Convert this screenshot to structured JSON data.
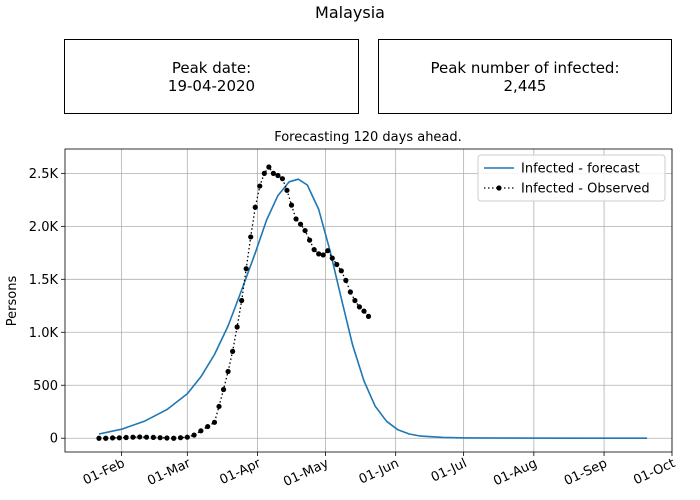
{
  "figure_title": "Malaysia",
  "boxes": {
    "peak_date_label": "Peak date:",
    "peak_date_value": "19-04-2020",
    "peak_infected_label": "Peak number of infected:",
    "peak_infected_value": "2,445"
  },
  "chart_data": {
    "type": "line",
    "title": "Forecasting 120 days ahead.",
    "xlabel": "",
    "ylabel": "Persons",
    "grid": true,
    "legend_position": "top-right",
    "xlim": [
      "2020-01-07",
      "2020-10-01"
    ],
    "ylim": [
      -130,
      2730
    ],
    "x_ticks": [
      {
        "date": "2020-02-01",
        "label": "01-Feb"
      },
      {
        "date": "2020-03-01",
        "label": "01-Mar"
      },
      {
        "date": "2020-04-01",
        "label": "01-Apr"
      },
      {
        "date": "2020-05-01",
        "label": "01-May"
      },
      {
        "date": "2020-06-01",
        "label": "01-Jun"
      },
      {
        "date": "2020-07-01",
        "label": "01-Jul"
      },
      {
        "date": "2020-08-01",
        "label": "01-Aug"
      },
      {
        "date": "2020-09-01",
        "label": "01-Sep"
      },
      {
        "date": "2020-10-01",
        "label": "01-Oct"
      }
    ],
    "y_ticks": [
      {
        "value": 0,
        "label": "0"
      },
      {
        "value": 500,
        "label": "500"
      },
      {
        "value": 1000,
        "label": "1.0K"
      },
      {
        "value": 1500,
        "label": "1.5K"
      },
      {
        "value": 2000,
        "label": "2.0K"
      },
      {
        "value": 2500,
        "label": "2.5K"
      }
    ],
    "series": [
      {
        "name": "Infected - forecast",
        "color": "#1f77b4",
        "style": "solid",
        "x": [
          "2020-01-22",
          "2020-02-01",
          "2020-02-11",
          "2020-02-21",
          "2020-03-01",
          "2020-03-07",
          "2020-03-13",
          "2020-03-19",
          "2020-03-25",
          "2020-03-31",
          "2020-04-05",
          "2020-04-10",
          "2020-04-15",
          "2020-04-19",
          "2020-04-23",
          "2020-04-28",
          "2020-05-03",
          "2020-05-08",
          "2020-05-13",
          "2020-05-18",
          "2020-05-23",
          "2020-05-28",
          "2020-06-02",
          "2020-06-07",
          "2020-06-12",
          "2020-06-22",
          "2020-07-02",
          "2020-07-22",
          "2020-08-21",
          "2020-09-20"
        ],
        "y": [
          40,
          85,
          160,
          270,
          420,
          580,
          790,
          1060,
          1400,
          1750,
          2060,
          2290,
          2420,
          2445,
          2390,
          2160,
          1770,
          1320,
          880,
          540,
          300,
          160,
          80,
          40,
          20,
          8,
          3,
          1,
          0,
          0
        ]
      },
      {
        "name": "Infected - Observed",
        "color": "#000000",
        "style": "dotted-marker",
        "x": [
          "2020-01-22",
          "2020-01-25",
          "2020-01-28",
          "2020-01-31",
          "2020-02-03",
          "2020-02-06",
          "2020-02-09",
          "2020-02-12",
          "2020-02-15",
          "2020-02-18",
          "2020-02-21",
          "2020-02-24",
          "2020-02-27",
          "2020-03-01",
          "2020-03-04",
          "2020-03-07",
          "2020-03-10",
          "2020-03-13",
          "2020-03-15",
          "2020-03-17",
          "2020-03-19",
          "2020-03-21",
          "2020-03-23",
          "2020-03-25",
          "2020-03-27",
          "2020-03-29",
          "2020-03-31",
          "2020-04-02",
          "2020-04-04",
          "2020-04-06",
          "2020-04-08",
          "2020-04-10",
          "2020-04-12",
          "2020-04-14",
          "2020-04-16",
          "2020-04-18",
          "2020-04-20",
          "2020-04-22",
          "2020-04-24",
          "2020-04-26",
          "2020-04-28",
          "2020-04-30",
          "2020-05-02",
          "2020-05-04",
          "2020-05-06",
          "2020-05-08",
          "2020-05-10",
          "2020-05-12",
          "2020-05-14",
          "2020-05-16",
          "2020-05-18",
          "2020-05-20"
        ],
        "y": [
          0,
          0,
          3,
          4,
          7,
          10,
          12,
          10,
          8,
          5,
          2,
          0,
          5,
          10,
          30,
          70,
          110,
          150,
          300,
          460,
          630,
          820,
          1050,
          1300,
          1600,
          1900,
          2180,
          2380,
          2500,
          2560,
          2500,
          2480,
          2450,
          2340,
          2200,
          2070,
          2020,
          1960,
          1870,
          1780,
          1740,
          1730,
          1770,
          1700,
          1640,
          1580,
          1490,
          1380,
          1300,
          1240,
          1200,
          1150
        ]
      }
    ]
  }
}
